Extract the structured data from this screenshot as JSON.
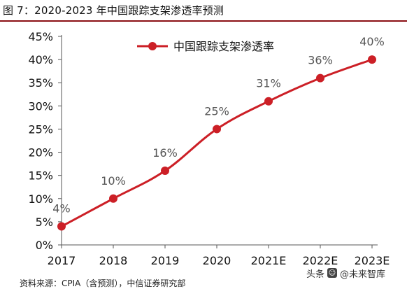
{
  "title": "图 7：2020-2023 年中国跟踪支架渗透率预测",
  "colors": {
    "accent": "#cc1f26",
    "title_rule": "#8b0f14",
    "label_gray": "#555555"
  },
  "chart_data": {
    "type": "line",
    "title": "",
    "xlabel": "",
    "ylabel": "",
    "categories": [
      "2017",
      "2018",
      "2019",
      "2020",
      "2021E",
      "2022E",
      "2023E"
    ],
    "series": [
      {
        "name": "中国跟踪支架渗透率",
        "values": [
          4,
          10,
          16,
          25,
          31,
          36,
          40
        ]
      }
    ],
    "data_labels": [
      "4%",
      "10%",
      "16%",
      "25%",
      "31%",
      "36%",
      "40%"
    ],
    "y_ticks": [
      "0%",
      "5%",
      "10%",
      "15%",
      "20%",
      "25%",
      "30%",
      "35%",
      "40%",
      "45%"
    ],
    "ylim": [
      0,
      45
    ],
    "grid": false,
    "legend_position": "top"
  },
  "footer": {
    "source_text": "资料来源：CPIA（含预测），中信证券研究部"
  },
  "watermark": {
    "prefix": "头条",
    "handle": "@未来智库"
  }
}
